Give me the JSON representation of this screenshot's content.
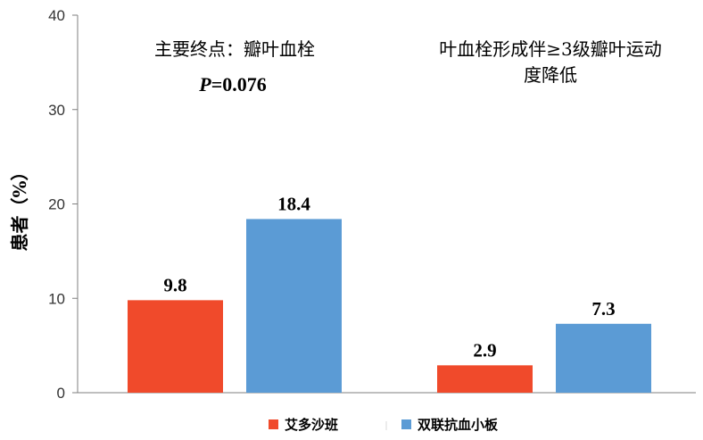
{
  "chart_data": {
    "type": "bar",
    "ylabel": "患者（%）",
    "xlabel": "",
    "ylim": [
      0,
      40
    ],
    "yticks": [
      0,
      10,
      20,
      30,
      40
    ],
    "grid": false,
    "legend_position": "bottom",
    "categories": [
      "主要终点：瓣叶血栓",
      "叶血栓形成伴≥3级瓣叶运动度降低"
    ],
    "category_title_lines": [
      [
        "主要终点：瓣叶血栓"
      ],
      [
        "叶血栓形成伴≥3级瓣叶运动",
        "度降低"
      ]
    ],
    "annotation": {
      "p_symbol": "P",
      "p_text": "=0.076"
    },
    "series": [
      {
        "name": "艾多沙班",
        "color": "#f04a2b",
        "values": [
          9.8,
          2.9
        ],
        "labels": [
          "9.8",
          "2.9"
        ]
      },
      {
        "name": "双联抗血小板",
        "color": "#5b9bd5",
        "values": [
          18.4,
          7.3
        ],
        "labels": [
          "18.4",
          "7.3"
        ]
      }
    ]
  }
}
